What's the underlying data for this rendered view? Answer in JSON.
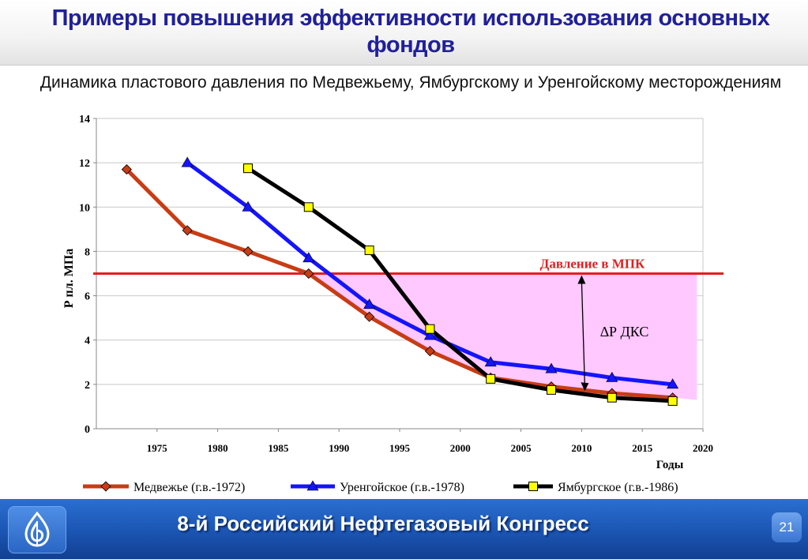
{
  "slide": {
    "title_line1": "Примеры повышения эффективности использования основных",
    "title_line2": "фондов"
  },
  "chart_data": {
    "type": "line",
    "title": "Динамика пластового давления по Медвежьему, Ямбургскому и Уренгойскому месторождениям",
    "ylabel": "Р пл. МПа",
    "xlabel": "Годы",
    "xlim": [
      1970,
      2020
    ],
    "ylim": [
      0,
      14
    ],
    "xticks": [
      1975,
      1980,
      1985,
      1990,
      1995,
      2000,
      2005,
      2010,
      2015,
      2020
    ],
    "yticks": [
      0,
      2,
      4,
      6,
      8,
      10,
      12,
      14
    ],
    "grid": true,
    "legend_position": "bottom",
    "series": [
      {
        "name": "Медвежье (г.в.-1972)",
        "color": "#c83c14",
        "marker": "diamond",
        "x": [
          1972.5,
          1977.5,
          1982.5,
          1987.5,
          1992.5,
          1997.5,
          2002.5,
          2007.5,
          2012.5,
          2017.5
        ],
        "y": [
          11.7,
          8.95,
          8.0,
          7.0,
          5.05,
          3.5,
          2.3,
          1.9,
          1.6,
          1.4
        ]
      },
      {
        "name": "Уренгойское (г.в.-1978)",
        "color": "#1414ff",
        "marker": "triangle",
        "x": [
          1977.5,
          1982.5,
          1987.5,
          1992.5,
          1997.5,
          2002.5,
          2007.5,
          2012.5,
          2017.5
        ],
        "y": [
          12.0,
          10.0,
          7.7,
          5.6,
          4.2,
          3.0,
          2.7,
          2.3,
          2.0
        ]
      },
      {
        "name": "Ямбургское (г.в.-1986)",
        "color": "#000000",
        "marker": "square",
        "marker_fill": "#ffff00",
        "x": [
          1982.5,
          1987.5,
          1992.5,
          1997.5,
          2002.5,
          2007.5,
          2012.5,
          2017.5
        ],
        "y": [
          11.75,
          10.0,
          8.05,
          4.5,
          2.25,
          1.75,
          1.4,
          1.25
        ]
      }
    ],
    "reference_line": {
      "label": "Давление в МПК",
      "y": 7.0,
      "color": "#e02020"
    },
    "shaded_region": {
      "color": "#ffc8ff",
      "top_y": 7.0,
      "x_from": 1987.5,
      "x_to": 2019.5,
      "lower_x": [
        1987.5,
        1992.5,
        1997.5,
        2002.5,
        2007.5,
        2012.5,
        2017.5,
        2019.5
      ],
      "lower_y": [
        7.0,
        5.05,
        3.5,
        2.3,
        1.9,
        1.6,
        1.4,
        1.3
      ]
    },
    "annotation": {
      "label": "∆Р ДКС",
      "arrow_x": 2010.0,
      "arrow_from_y": 1.7,
      "arrow_to_y": 7.0
    }
  },
  "footer": {
    "text": "8-й Российский Нефтегазовый Конгресс",
    "page_number": "21"
  },
  "colors": {
    "title": "#20209a",
    "footer_bg": "#1b55b3"
  }
}
